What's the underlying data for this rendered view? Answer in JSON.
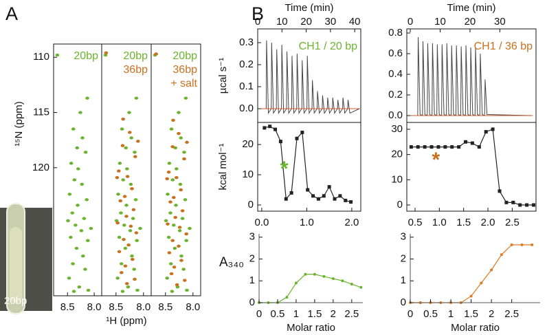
{
  "panel_labels": [
    "A",
    "B"
  ],
  "inset_label": "20bp",
  "chart_data": [
    {
      "type": "scatter",
      "ylabel": "¹⁵N (ppm)",
      "frame": true,
      "legend": true,
      "xlim": [
        8.76,
        7.86
      ],
      "ylim": [
        131.6,
        108.8
      ],
      "xticks": [
        8.5,
        {
          "value": 8,
          "label": "8.0"
        }
      ],
      "yticks": [
        110,
        115,
        120
      ],
      "series": [
        {
          "name": "20bp",
          "color": "#6ab42d",
          "x": [
            8.69,
            8.13,
            8.26,
            8.39,
            8.22,
            8.32,
            8.16,
            8.43,
            8.3,
            8.37,
            8.23,
            8.46,
            8.14,
            8.31,
            8.41,
            8.19,
            8.35,
            8.24,
            8.44,
            8.12,
            8.33,
            8.21,
            8.4,
            8.17,
            8.47,
            8.28,
            8.11,
            8.38,
            8.06,
            8.49
          ],
          "values": [
            109.8,
            113.7,
            115.0,
            116.5,
            117.3,
            118.2,
            118.6,
            119.6,
            120.1,
            121.1,
            121.5,
            122.4,
            122.9,
            123.4,
            124.1,
            124.6,
            125.2,
            125.7,
            126.3,
            126.6,
            127.3,
            128.0,
            128.7,
            129.2,
            130.0,
            130.8,
            131.1,
            131.2,
            125.5,
            124.8
          ]
        }
      ]
    },
    {
      "type": "scatter",
      "xlabel": "¹H (ppm)",
      "frame": true,
      "legend": true,
      "xlim": [
        8.76,
        7.86
      ],
      "ylim": [
        131.6,
        108.8
      ],
      "xticks": [
        8.5,
        {
          "value": 8,
          "label": "8.0"
        }
      ],
      "series": [
        {
          "name": "20bp",
          "color": "#6ab42d",
          "x": [
            8.69,
            8.13,
            8.26,
            8.39,
            8.22,
            8.32,
            8.16,
            8.43,
            8.3,
            8.37,
            8.23,
            8.46,
            8.14,
            8.31,
            8.41,
            8.19,
            8.35,
            8.24,
            8.44,
            8.12,
            8.33,
            8.21,
            8.4,
            8.17,
            8.47,
            8.28,
            8.11,
            8.38,
            8.06,
            8.49
          ],
          "values": [
            109.8,
            113.7,
            115.0,
            116.5,
            117.3,
            118.2,
            118.6,
            119.6,
            120.1,
            121.1,
            121.5,
            122.4,
            122.9,
            123.4,
            124.1,
            124.6,
            125.2,
            125.7,
            126.3,
            126.6,
            127.3,
            128.0,
            128.7,
            129.2,
            130.0,
            130.8,
            131.1,
            131.2,
            125.5,
            124.8
          ]
        },
        {
          "name": "36bp",
          "color": "#c8701e",
          "x": [
            8.68,
            8.25,
            8.38,
            8.15,
            8.45,
            8.29,
            8.21,
            8.34,
            8.42,
            8.18,
            8.31,
            8.47,
            8.13,
            8.36,
            8.27,
            8.44,
            8.2,
            8.33,
            8.4,
            8.16,
            8.3,
            8.48,
            8.23,
            8.1,
            8.37
          ],
          "values": [
            109.6,
            116.8,
            118.0,
            119.0,
            120.3,
            120.8,
            121.9,
            122.6,
            123.0,
            123.8,
            124.4,
            125.0,
            125.9,
            126.5,
            127.0,
            127.6,
            128.3,
            128.9,
            129.5,
            130.1,
            130.5,
            120.9,
            125.3,
            117.6,
            115.6
          ]
        }
      ]
    },
    {
      "type": "scatter",
      "frame": true,
      "legend": true,
      "legend_note": "+ salt",
      "xlim": [
        8.76,
        7.86
      ],
      "ylim": [
        131.6,
        108.8
      ],
      "xticks": [
        8.5,
        {
          "value": 8,
          "label": "8.0"
        }
      ],
      "series": [
        {
          "name": "20bp",
          "color": "#6ab42d",
          "x": [
            8.69,
            8.13,
            8.26,
            8.39,
            8.22,
            8.32,
            8.16,
            8.43,
            8.3,
            8.37,
            8.23,
            8.46,
            8.14,
            8.31,
            8.41,
            8.19,
            8.35,
            8.24,
            8.44,
            8.12,
            8.33,
            8.21,
            8.4,
            8.17,
            8.47,
            8.28,
            8.11,
            8.38,
            8.06,
            8.49
          ],
          "values": [
            109.8,
            113.7,
            115.0,
            116.5,
            117.3,
            118.2,
            118.6,
            119.6,
            120.1,
            121.1,
            121.5,
            122.4,
            122.9,
            123.4,
            124.1,
            124.6,
            125.2,
            125.7,
            126.3,
            126.6,
            127.3,
            128.0,
            128.7,
            129.2,
            130.0,
            130.8,
            131.1,
            131.2,
            125.5,
            124.8
          ]
        },
        {
          "name": "36bp",
          "color": "#c8701e",
          "x": [
            8.67,
            8.26,
            8.37,
            8.16,
            8.44,
            8.3,
            8.22,
            8.35,
            8.41,
            8.19,
            8.32,
            8.46,
            8.12,
            8.37,
            8.26,
            8.43,
            8.21,
            8.34,
            8.39,
            8.15,
            8.29,
            8.47,
            8.24,
            8.11,
            8.36
          ],
          "values": [
            109.7,
            116.9,
            118.1,
            119.2,
            120.4,
            120.9,
            122.0,
            122.7,
            123.1,
            123.9,
            124.5,
            125.1,
            126.0,
            126.6,
            127.1,
            127.7,
            128.4,
            129.0,
            129.6,
            130.2,
            130.6,
            121.0,
            125.4,
            117.7,
            115.7
          ]
        }
      ]
    },
    {
      "type": "line",
      "xlabel": "Time (min)",
      "xaxis": "top",
      "ylabel": "µcal s⁻¹",
      "frame": true,
      "title": "CH1 / 20 bp",
      "title_color": "#6ab42d",
      "xlim": [
        0,
        42.5
      ],
      "ylim": [
        -0.0625,
        0.3625
      ],
      "xticks": [
        0,
        10,
        20,
        30,
        40
      ],
      "yticks": [
        {
          "value": 0,
          "label": "0.0"
        },
        0.1,
        0.2,
        0.3
      ],
      "series": [
        {
          "color": "#444444",
          "x": [
            0,
            3.5,
            3.65,
            4.4,
            5.6,
            5.75,
            6.5,
            7.7,
            7.85,
            8.6,
            9.8,
            9.95,
            10.7,
            11.9,
            12.05,
            12.8,
            14.0,
            14.15,
            14.9,
            16.1,
            16.25,
            17.0,
            18.2,
            18.35,
            19.1,
            20.3,
            20.45,
            21.2,
            22.4,
            22.55,
            23.3,
            24.5,
            24.65,
            25.4,
            26.6,
            26.75,
            27.5,
            28.7,
            28.85,
            29.6,
            30.8,
            30.95,
            31.7,
            32.9,
            33.05,
            33.8,
            35.0,
            35.15,
            35.9,
            37.1,
            37.25,
            38.0,
            42
          ],
          "values": [
            0,
            0,
            0.31,
            -0.02,
            0,
            0.3,
            -0.02,
            0,
            0.27,
            -0.02,
            0,
            0.29,
            -0.02,
            0,
            0.26,
            -0.02,
            0,
            0.24,
            -0.02,
            0,
            0.25,
            -0.02,
            0,
            0.22,
            -0.02,
            0,
            0.24,
            -0.02,
            0,
            0.13,
            -0.02,
            0,
            0.08,
            -0.02,
            0,
            0.06,
            -0.02,
            0,
            0.05,
            -0.02,
            0,
            0.05,
            -0.02,
            0,
            0.04,
            -0.02,
            0,
            0.05,
            -0.02,
            0,
            0.04,
            -0.02,
            0
          ]
        },
        {
          "color": "#d9542b",
          "x": [
            0,
            42
          ],
          "values": [
            0,
            0
          ]
        }
      ]
    },
    {
      "type": "line",
      "ylabel": "kcal mol⁻¹",
      "frame": true,
      "markers": "square",
      "line_color": "#222222",
      "xlim": [
        -0.09,
        2.2
      ],
      "ylim": [
        -2.05,
        27.3
      ],
      "xticks": [
        {
          "value": 0,
          "label": "0.0"
        },
        {
          "value": 1,
          "label": "1.0"
        },
        {
          "value": 2,
          "label": "2.0"
        }
      ],
      "yticks": [
        0,
        10,
        20
      ],
      "annotations": [
        {
          "text": "*",
          "x": 0.5,
          "y": 13,
          "color": "#6ab42d"
        }
      ],
      "series": [
        {
          "color": "#222222",
          "x": [
            0.06,
            0.18,
            0.3,
            0.42,
            0.54,
            0.66,
            0.78,
            0.9,
            1.02,
            1.14,
            1.26,
            1.38,
            1.5,
            1.62,
            1.74,
            1.86,
            1.98
          ],
          "values": [
            25.5,
            26,
            25,
            21,
            2,
            4,
            22,
            24,
            5,
            3,
            2,
            3,
            6,
            2,
            3,
            1.5,
            1
          ]
        }
      ]
    },
    {
      "type": "line",
      "xlabel": "Molar ratio",
      "ylabel": "A₃₄₀",
      "ylabel_horizontal": true,
      "frame": false,
      "markers": "dot",
      "xlim": [
        0,
        2.8
      ],
      "ylim": [
        0,
        3.15
      ],
      "xticks": [
        0,
        0.5,
        1,
        1.5,
        2,
        2.5
      ],
      "yticks": [
        0,
        1,
        2,
        3
      ],
      "series": [
        {
          "color": "#6ab42d",
          "x": [
            0,
            0.25,
            0.5,
            0.75,
            1,
            1.25,
            1.5,
            1.75,
            2,
            2.25,
            2.5,
            2.75
          ],
          "values": [
            0,
            0,
            0,
            0.25,
            0.9,
            1.3,
            1.3,
            1.2,
            1.1,
            1.0,
            0.85,
            0.7
          ]
        }
      ]
    },
    {
      "type": "line",
      "xlabel": "Time (min)",
      "xaxis": "top",
      "frame": true,
      "title": "CH1 / 36 bp",
      "title_color": "#c8701e",
      "xlim": [
        -1.15,
        42.1
      ],
      "ylim": [
        -0.0667,
        0.84
      ],
      "xticks": [
        0,
        10,
        20,
        30
      ],
      "yticks": [
        {
          "value": 0,
          "label": "0.0"
        },
        0.2,
        0.4,
        0.6,
        0.8
      ],
      "series": [
        {
          "color": "#444444",
          "x": [
            -1,
            2.5,
            2.65,
            3.3,
            4.1,
            4.25,
            4.9,
            5.7,
            5.85,
            6.5,
            7.3,
            7.45,
            8.1,
            8.9,
            9.05,
            9.7,
            10.5,
            10.65,
            11.3,
            12.1,
            12.25,
            12.9,
            13.7,
            13.85,
            14.5,
            15.3,
            15.45,
            16.1,
            16.9,
            17.05,
            17.7,
            18.5,
            18.65,
            19.3,
            20.1,
            20.25,
            20.9,
            21.7,
            21.85,
            22.5,
            23.3,
            23.45,
            24.1,
            24.9,
            25.05,
            25.7,
            41
          ],
          "values": [
            0,
            0,
            0.76,
            0.01,
            0,
            0.72,
            0.01,
            0,
            0.7,
            0.01,
            0,
            0.7,
            0.01,
            0,
            0.69,
            0.01,
            0,
            0.69,
            0.01,
            0,
            0.7,
            0.01,
            0,
            0.68,
            0.01,
            0,
            0.68,
            0.01,
            0,
            0.67,
            0.01,
            0,
            0.68,
            0.01,
            0,
            0.66,
            0.01,
            0,
            0.66,
            0.01,
            0,
            0.6,
            0.01,
            0,
            0.35,
            0.01,
            0
          ]
        },
        {
          "color": "#d9542b",
          "x": [
            -1,
            41
          ],
          "values": [
            0,
            0
          ]
        }
      ]
    },
    {
      "type": "line",
      "frame": true,
      "markers": "square",
      "xlim": [
        0.33,
        2.99
      ],
      "ylim": [
        -2.45,
        32.7
      ],
      "xticks": [
        0.5,
        {
          "value": 1,
          "label": "1.0"
        },
        1.5,
        {
          "value": 2,
          "label": "2.0"
        },
        2.5
      ],
      "yticks": [
        0,
        10,
        20,
        30
      ],
      "annotations": [
        {
          "text": "*",
          "x": 0.93,
          "y": 19,
          "color": "#c8701e"
        }
      ],
      "series": [
        {
          "color": "#222222",
          "x": [
            0.42,
            0.56,
            0.7,
            0.84,
            0.98,
            1.12,
            1.26,
            1.4,
            1.54,
            1.68,
            1.82,
            1.96,
            2.1,
            2.24,
            2.38,
            2.52,
            2.66,
            2.8,
            2.94
          ],
          "values": [
            23,
            23,
            23,
            23,
            23,
            23,
            23,
            23,
            25,
            24.5,
            23,
            29,
            30,
            5.5,
            1,
            1,
            0,
            0,
            0
          ]
        }
      ]
    },
    {
      "type": "line",
      "xlabel": "Molar ratio",
      "frame": false,
      "markers": "dot",
      "xlim": [
        0,
        3.2
      ],
      "ylim": [
        0,
        3.15
      ],
      "xticks": [
        0,
        0.5,
        1,
        1.5,
        2,
        2.5
      ],
      "yticks": [
        0,
        1,
        2,
        3
      ],
      "series": [
        {
          "color": "#e07a20",
          "x": [
            0,
            0.25,
            0.5,
            0.75,
            1,
            1.25,
            1.5,
            1.75,
            2,
            2.25,
            2.5,
            2.75,
            3
          ],
          "values": [
            0,
            0,
            0,
            0,
            0,
            0,
            0.3,
            0.9,
            1.5,
            2.2,
            2.65,
            2.65,
            2.65
          ]
        }
      ]
    }
  ]
}
